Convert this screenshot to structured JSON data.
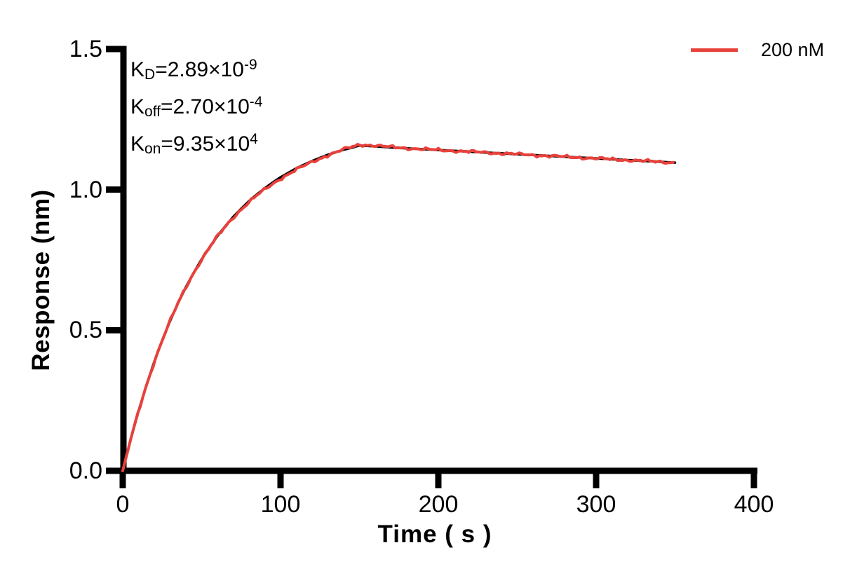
{
  "chart_data": {
    "type": "line",
    "title": "",
    "xlabel": "Time ( s )",
    "ylabel": "Response (nm)",
    "xlim": [
      0,
      400
    ],
    "ylim": [
      0,
      1.5
    ],
    "grid": false,
    "x_tick_values": [
      0,
      100,
      200,
      300,
      400
    ],
    "x_tick_labels": [
      "0",
      "100",
      "200",
      "300",
      "400"
    ],
    "y_tick_values": [
      0,
      0.5,
      1.0,
      1.5
    ],
    "y_tick_labels": [
      "0.0",
      "0.5",
      "1.0",
      "1.5"
    ],
    "legend_position": "top-right",
    "legend": [
      {
        "label": "200 nM",
        "color": "#E8413C"
      }
    ],
    "kinetic_annotations": [
      {
        "pre": "K",
        "sub": "D",
        "mid": "=2.89×10",
        "sup": "-9"
      },
      {
        "pre": "K",
        "sub": "off",
        "mid": "=2.70×10",
        "sup": "-4"
      },
      {
        "pre": "K",
        "sub": "on",
        "mid": "=9.35×10",
        "sup": "4"
      }
    ],
    "x": [
      0,
      5,
      10,
      15,
      20,
      25,
      30,
      35,
      40,
      45,
      50,
      55,
      60,
      65,
      70,
      75,
      80,
      85,
      90,
      95,
      100,
      105,
      110,
      115,
      120,
      125,
      130,
      135,
      140,
      145,
      150,
      160,
      170,
      180,
      190,
      200,
      210,
      220,
      230,
      240,
      250,
      260,
      270,
      280,
      290,
      300,
      310,
      320,
      330,
      340,
      350
    ],
    "series": [
      {
        "name": "200 nM data",
        "color": "#E8413C",
        "style": "noisy",
        "noise_amplitude_nm": 0.006,
        "values": [
          0,
          0.111,
          0.212,
          0.304,
          0.388,
          0.464,
          0.533,
          0.596,
          0.653,
          0.705,
          0.752,
          0.795,
          0.835,
          0.87,
          0.903,
          0.932,
          0.959,
          0.983,
          1.005,
          1.025,
          1.044,
          1.06,
          1.076,
          1.089,
          1.102,
          1.113,
          1.124,
          1.133,
          1.142,
          1.149,
          1.157,
          1.154,
          1.15,
          1.147,
          1.144,
          1.141,
          1.138,
          1.135,
          1.132,
          1.129,
          1.126,
          1.123,
          1.12,
          1.117,
          1.114,
          1.111,
          1.108,
          1.105,
          1.102,
          1.099,
          1.096
        ]
      },
      {
        "name": "kinetic fit",
        "color": "#000000",
        "style": "smooth",
        "values": [
          0,
          0.111,
          0.212,
          0.304,
          0.388,
          0.464,
          0.533,
          0.596,
          0.653,
          0.705,
          0.752,
          0.795,
          0.835,
          0.87,
          0.903,
          0.932,
          0.959,
          0.983,
          1.005,
          1.025,
          1.044,
          1.06,
          1.076,
          1.089,
          1.102,
          1.113,
          1.124,
          1.133,
          1.142,
          1.149,
          1.157,
          1.154,
          1.15,
          1.147,
          1.144,
          1.141,
          1.138,
          1.135,
          1.132,
          1.129,
          1.126,
          1.123,
          1.12,
          1.117,
          1.114,
          1.111,
          1.108,
          1.105,
          1.102,
          1.099,
          1.096
        ]
      }
    ],
    "association_end_s": 150,
    "dissociation_end_s": 350
  }
}
